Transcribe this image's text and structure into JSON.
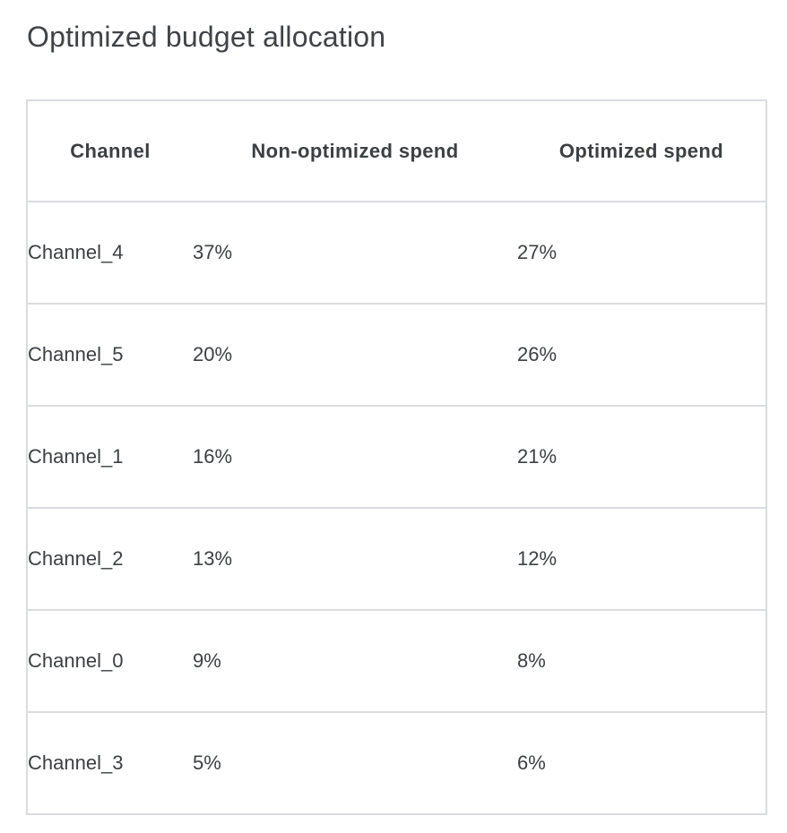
{
  "title": "Optimized budget allocation",
  "chart_data": {
    "type": "table",
    "title": "Optimized budget allocation",
    "columns": [
      "Channel",
      "Non-optimized spend",
      "Optimized spend"
    ],
    "rows": [
      [
        "Channel_4",
        "37%",
        "27%"
      ],
      [
        "Channel_5",
        "20%",
        "26%"
      ],
      [
        "Channel_1",
        "16%",
        "21%"
      ],
      [
        "Channel_2",
        "13%",
        "12%"
      ],
      [
        "Channel_0",
        "9%",
        "8%"
      ],
      [
        "Channel_3",
        "5%",
        "6%"
      ]
    ],
    "non_optimized_spend_pct": [
      37,
      20,
      16,
      13,
      9,
      5
    ],
    "optimized_spend_pct": [
      27,
      26,
      21,
      12,
      8,
      6
    ]
  },
  "colors": {
    "title_text": "#3f4347",
    "table_text": "#3c4043",
    "border": "#dadce0",
    "background": "#ffffff"
  }
}
